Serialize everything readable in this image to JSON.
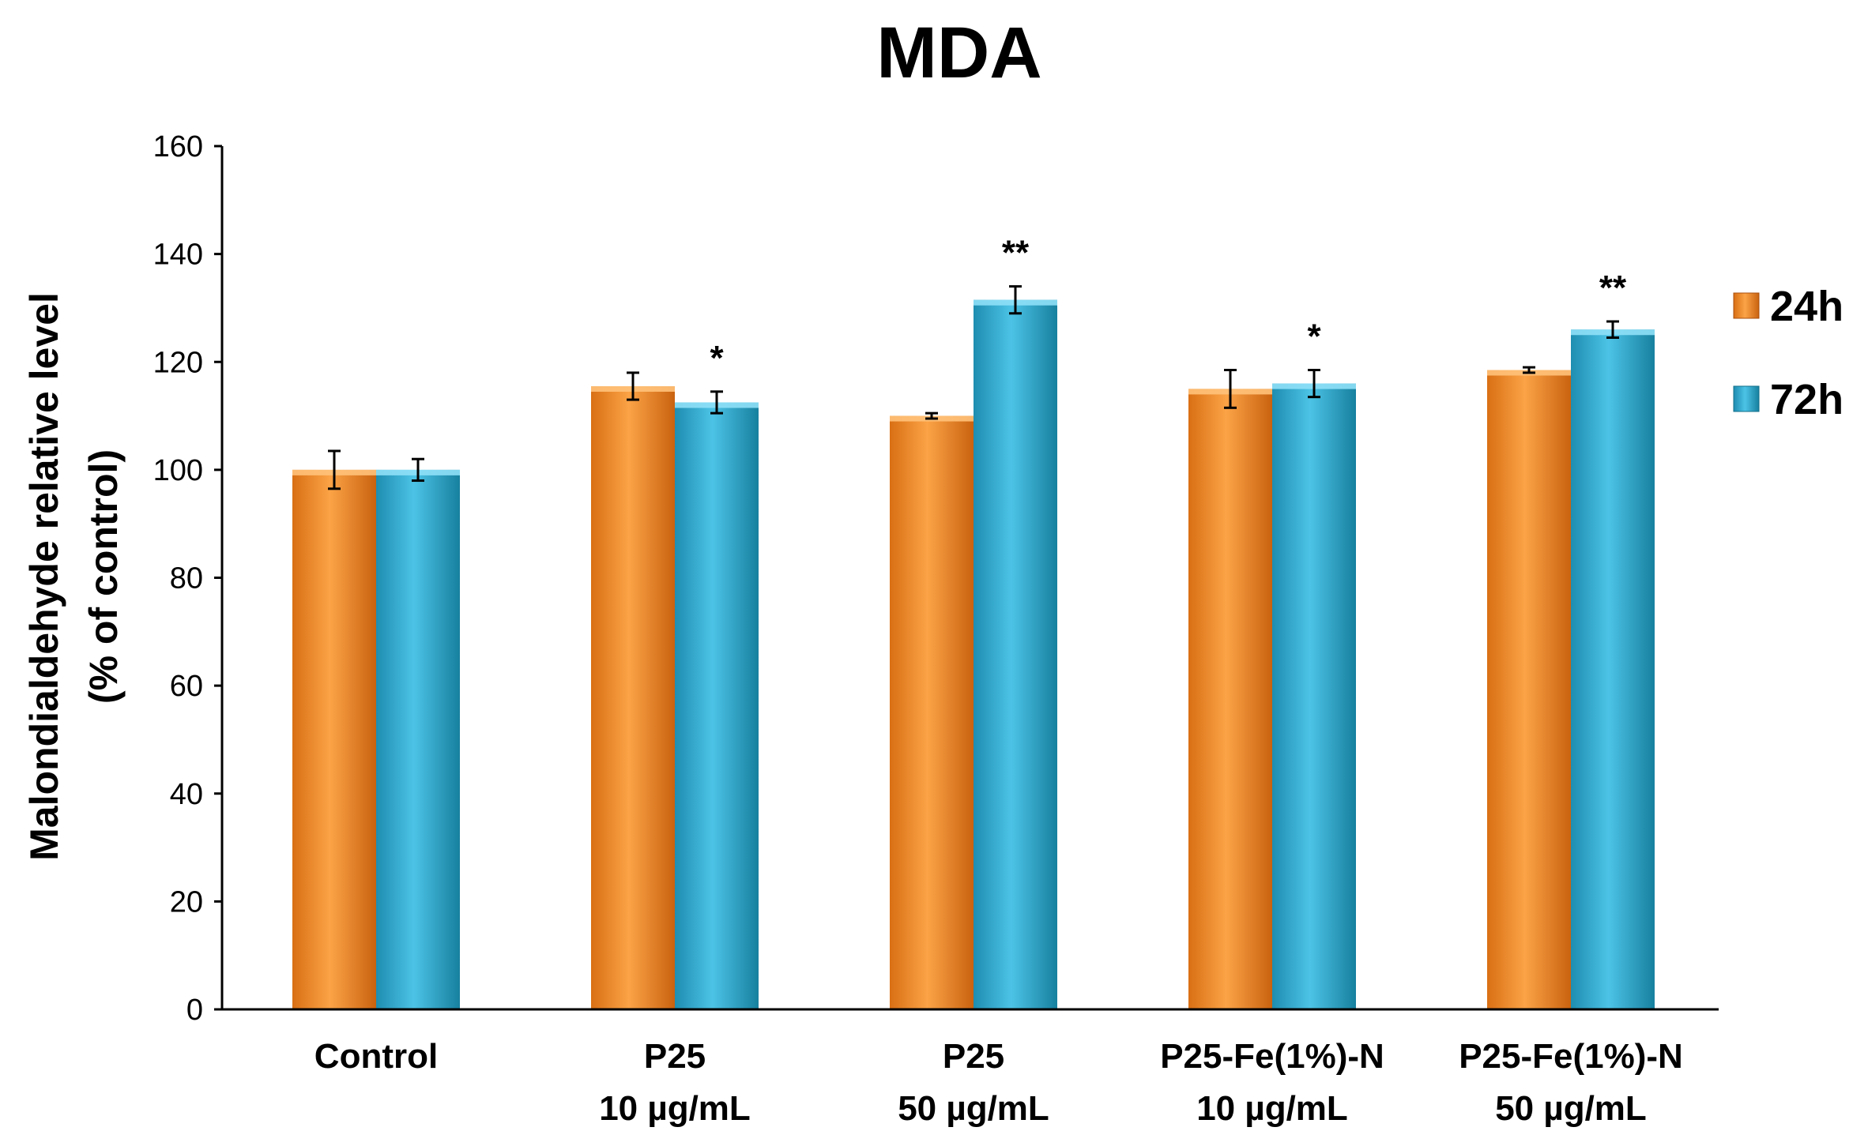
{
  "chart_data": {
    "type": "bar",
    "title": "MDA",
    "xlabel": "",
    "ylabel_lines": [
      "Malondialdehyde relative level",
      "(% of control)"
    ],
    "ylim": [
      0,
      160
    ],
    "yticks": [
      0,
      20,
      40,
      60,
      80,
      100,
      120,
      140,
      160
    ],
    "categories": [
      [
        "Control"
      ],
      [
        "P25",
        "10 µg/mL"
      ],
      [
        "P25",
        "50 µg/mL"
      ],
      [
        "P25-Fe(1%)-N",
        "10 µg/mL"
      ],
      [
        "P25-Fe(1%)-N",
        "50 µg/mL"
      ]
    ],
    "series": [
      {
        "name": "24h",
        "color": "#f08a24",
        "values": [
          100,
          115.5,
          110,
          115,
          118.5
        ],
        "errors": [
          3.5,
          2.5,
          0.5,
          3.5,
          0.5
        ],
        "significance": [
          "",
          "",
          "",
          "",
          ""
        ]
      },
      {
        "name": "72h",
        "color": "#29a9cf",
        "values": [
          100,
          112.5,
          131.5,
          116,
          126
        ],
        "errors": [
          2,
          2,
          2.5,
          2.5,
          1.5
        ],
        "significance": [
          "",
          "*",
          "**",
          "*",
          "**"
        ]
      }
    ],
    "legend_position": "right"
  }
}
